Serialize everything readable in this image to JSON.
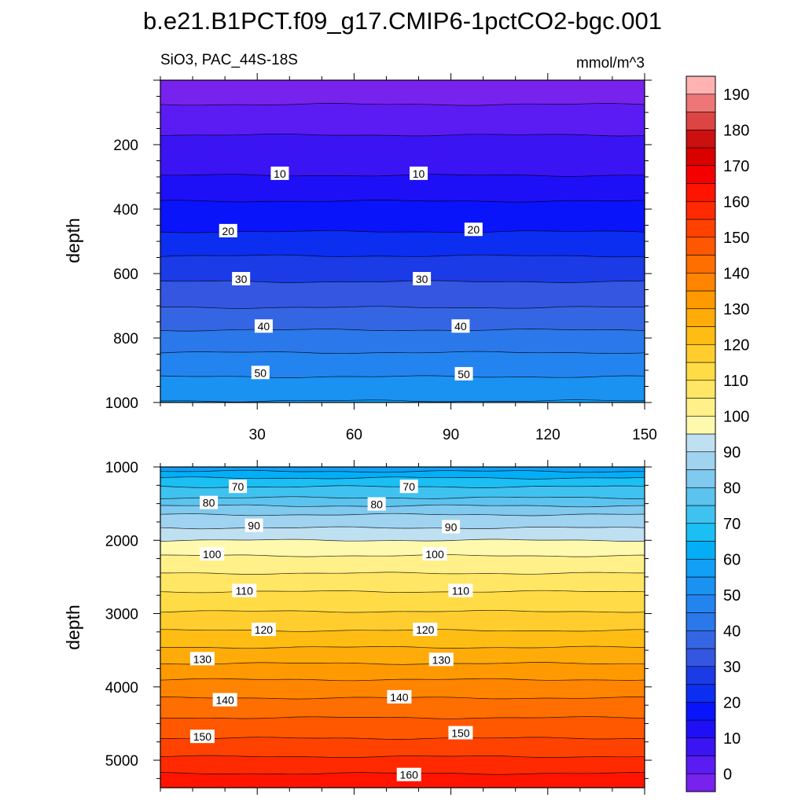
{
  "chart_data": {
    "type": "heatmap",
    "title": "b.e21.B1PCT.f09_g17.CMIP6-1pctCO2-bgc.001",
    "variable_label": "SiO3, PAC_44S-18S",
    "units_label": "mmol/m^3",
    "panels": [
      {
        "name": "upper",
        "xlim": [
          0,
          150
        ],
        "ylim": [
          1000,
          0
        ],
        "ylabel": "depth",
        "xticks": [
          "30",
          "60",
          "90",
          "120",
          "150"
        ],
        "xtick_values": [
          30,
          60,
          90,
          120,
          150
        ],
        "yticks": [
          "200",
          "400",
          "600",
          "800",
          "1000"
        ],
        "ytick_values": [
          200,
          400,
          600,
          800,
          1000
        ],
        "contour_levels_depths": [
          {
            "level": 0,
            "depth": 75
          },
          {
            "level": 5,
            "depth": 170
          },
          {
            "level": 10,
            "depth": 295
          },
          {
            "level": 15,
            "depth": 375
          },
          {
            "level": 20,
            "depth": 470
          },
          {
            "level": 25,
            "depth": 545
          },
          {
            "level": 30,
            "depth": 625
          },
          {
            "level": 35,
            "depth": 705
          },
          {
            "level": 40,
            "depth": 775
          },
          {
            "level": 45,
            "depth": 845
          },
          {
            "level": 50,
            "depth": 920
          },
          {
            "level": 55,
            "depth": 995
          }
        ],
        "contour_labels": [
          {
            "text": "10",
            "x": 37,
            "depth": 290
          },
          {
            "text": "10",
            "x": 80,
            "depth": 290
          },
          {
            "text": "20",
            "x": 21,
            "depth": 468
          },
          {
            "text": "20",
            "x": 97,
            "depth": 464
          },
          {
            "text": "30",
            "x": 25,
            "depth": 617
          },
          {
            "text": "30",
            "x": 81,
            "depth": 617
          },
          {
            "text": "40",
            "x": 32,
            "depth": 764
          },
          {
            "text": "40",
            "x": 93,
            "depth": 764
          },
          {
            "text": "50",
            "x": 31,
            "depth": 908
          },
          {
            "text": "50",
            "x": 94,
            "depth": 912
          }
        ]
      },
      {
        "name": "lower",
        "xlim": [
          0,
          150
        ],
        "ylim": [
          5375,
          1000
        ],
        "ylabel": "depth",
        "yticks": [
          "1000",
          "2000",
          "3000",
          "4000",
          "5000"
        ],
        "ytick_values": [
          1000,
          2000,
          3000,
          4000,
          5000
        ],
        "contour_levels_depths": [
          {
            "level": 60,
            "depth": 1060
          },
          {
            "level": 65,
            "depth": 1150
          },
          {
            "level": 70,
            "depth": 1270
          },
          {
            "level": 75,
            "depth": 1420
          },
          {
            "level": 80,
            "depth": 1530
          },
          {
            "level": 85,
            "depth": 1650
          },
          {
            "level": 90,
            "depth": 1830
          },
          {
            "level": 95,
            "depth": 2000
          },
          {
            "level": 100,
            "depth": 2210
          },
          {
            "level": 105,
            "depth": 2450
          },
          {
            "level": 110,
            "depth": 2700
          },
          {
            "level": 115,
            "depth": 2970
          },
          {
            "level": 120,
            "depth": 3230
          },
          {
            "level": 125,
            "depth": 3460
          },
          {
            "level": 130,
            "depth": 3680
          },
          {
            "level": 135,
            "depth": 3900
          },
          {
            "level": 140,
            "depth": 4150
          },
          {
            "level": 145,
            "depth": 4420
          },
          {
            "level": 150,
            "depth": 4700
          },
          {
            "level": 155,
            "depth": 4950
          },
          {
            "level": 160,
            "depth": 5180
          }
        ],
        "contour_labels": [
          {
            "text": "70",
            "x": 24,
            "depth": 1270
          },
          {
            "text": "70",
            "x": 77,
            "depth": 1270
          },
          {
            "text": "80",
            "x": 15,
            "depth": 1490
          },
          {
            "text": "80",
            "x": 67,
            "depth": 1510
          },
          {
            "text": "90",
            "x": 29,
            "depth": 1800
          },
          {
            "text": "90",
            "x": 90,
            "depth": 1820
          },
          {
            "text": "100",
            "x": 16,
            "depth": 2190
          },
          {
            "text": "100",
            "x": 85,
            "depth": 2190
          },
          {
            "text": "110",
            "x": 26,
            "depth": 2690
          },
          {
            "text": "110",
            "x": 93,
            "depth": 2690
          },
          {
            "text": "120",
            "x": 32,
            "depth": 3220
          },
          {
            "text": "120",
            "x": 82,
            "depth": 3220
          },
          {
            "text": "130",
            "x": 13,
            "depth": 3620
          },
          {
            "text": "130",
            "x": 87,
            "depth": 3630
          },
          {
            "text": "140",
            "x": 20,
            "depth": 4180
          },
          {
            "text": "140",
            "x": 74,
            "depth": 4140
          },
          {
            "text": "150",
            "x": 13,
            "depth": 4680
          },
          {
            "text": "150",
            "x": 93,
            "depth": 4630
          },
          {
            "text": "160",
            "x": 77,
            "depth": 5200
          }
        ]
      }
    ],
    "colorbar": {
      "tick_labels": [
        "0",
        "10",
        "20",
        "30",
        "40",
        "50",
        "60",
        "70",
        "80",
        "90",
        "100",
        "110",
        "120",
        "130",
        "140",
        "150",
        "160",
        "170",
        "180",
        "190"
      ],
      "boundaries": [
        -5,
        0,
        5,
        10,
        15,
        20,
        25,
        30,
        35,
        40,
        45,
        50,
        55,
        60,
        65,
        70,
        75,
        80,
        85,
        90,
        95,
        100,
        105,
        110,
        115,
        120,
        125,
        130,
        135,
        140,
        145,
        150,
        155,
        160,
        165,
        170,
        175,
        180,
        185,
        190,
        195
      ],
      "colors": [
        "#7822ee",
        "#5a1cf2",
        "#3b14f4",
        "#1e10f6",
        "#0a14fa",
        "#0c2ef0",
        "#1a3be6",
        "#3456e0",
        "#3466e4",
        "#2a78ea",
        "#2384ef",
        "#1a92f2",
        "#11a0f5",
        "#04aef7",
        "#1bbff4",
        "#40c2f0",
        "#5cc3ee",
        "#80c9ef",
        "#9fd3f0",
        "#bfe0f1",
        "#fff9ae",
        "#fff08a",
        "#ffe664",
        "#ffdc46",
        "#ffcd2e",
        "#ffbd14",
        "#ffab0a",
        "#ff9900",
        "#ff8400",
        "#ff6e00",
        "#ff5800",
        "#ff4200",
        "#ff2a00",
        "#ff1400",
        "#f50000",
        "#da0000",
        "#cc1010",
        "#dd4444",
        "#ee7676",
        "#ffb2b2"
      ]
    }
  }
}
